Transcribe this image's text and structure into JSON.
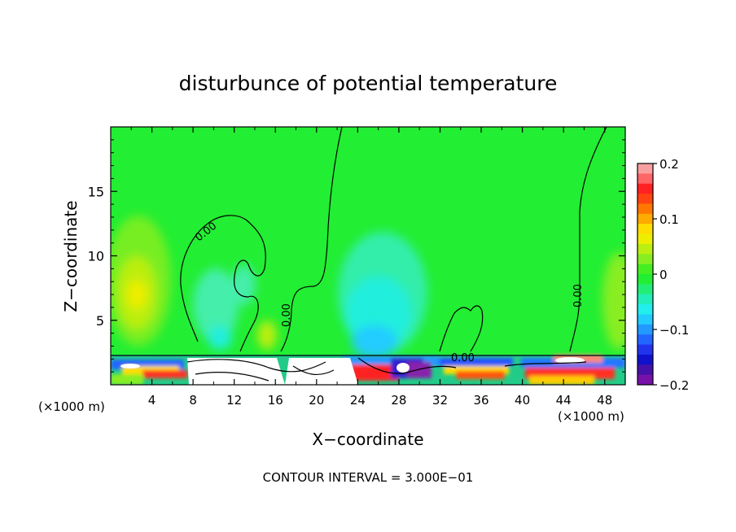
{
  "chart_data": {
    "type": "heatmap",
    "title": "disturbunce of potential temperature",
    "xlabel": "X−coordinate",
    "ylabel": "Z−coordinate",
    "x_unit_left": "(×1000 m)",
    "x_unit_right": "(×1000 m)",
    "xlim": [
      0,
      50
    ],
    "ylim": [
      0,
      20
    ],
    "x_ticks": [
      "4",
      "8",
      "12",
      "16",
      "20",
      "24",
      "28",
      "32",
      "36",
      "40",
      "44",
      "48"
    ],
    "y_ticks": [
      "5",
      "10",
      "15"
    ],
    "colorbar": {
      "range": [
        -0.2,
        0.2
      ],
      "tick_labels": [
        "0.2",
        "0.1",
        "0",
        "−0.1",
        "−0.2"
      ],
      "tick_values": [
        0.2,
        0.1,
        0,
        -0.1,
        -0.2
      ]
    },
    "contour_labels": [
      "0.00",
      "0.00",
      "0.00",
      "0.00"
    ],
    "footer": "CONTOUR INTERVAL = 3.000E−01",
    "grid": false,
    "legend": "right"
  }
}
